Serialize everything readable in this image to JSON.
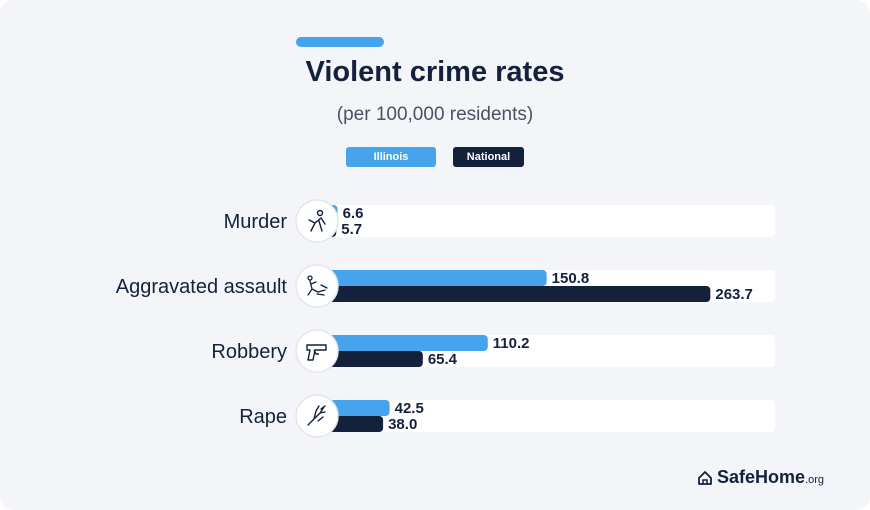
{
  "title": "Violent crime rates",
  "subtitle": "(per 100,000 residents)",
  "legend": {
    "illinois": "Illinois",
    "national": "National"
  },
  "brand": {
    "name": "SafeHome",
    "suffix": ".org"
  },
  "colors": {
    "illinois": "#45a4ec",
    "national": "#13213b",
    "track": "#ffffff",
    "background": "#f4f5f8"
  },
  "chart_data": {
    "type": "bar",
    "orientation": "horizontal",
    "categories": [
      "Murder",
      "Aggravated assault",
      "Robbery",
      "Rape"
    ],
    "icons": [
      "crime-scene-icon",
      "assault-icon",
      "gun-icon",
      "hand-icon"
    ],
    "series": [
      {
        "name": "Illinois",
        "values": [
          6.6,
          150.8,
          110.2,
          42.5
        ],
        "labels": [
          "6.6",
          "150.8",
          "110.2",
          "42.5"
        ]
      },
      {
        "name": "National",
        "values": [
          5.7,
          263.7,
          65.4,
          38.0
        ],
        "labels": [
          "5.7",
          "263.7",
          "65.4",
          "38.0"
        ]
      }
    ],
    "legend_position": "top-center",
    "grid": false
  }
}
